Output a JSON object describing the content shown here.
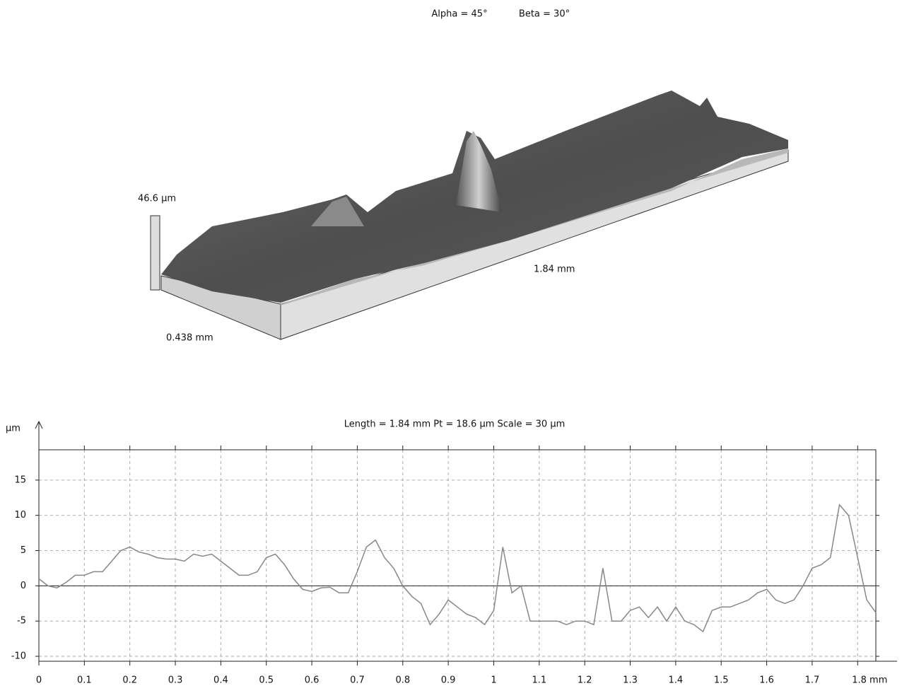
{
  "chart_data": [
    {
      "type": "surface",
      "alpha_label": "Alpha = 45°",
      "beta_label": "Beta = 30°",
      "z_label": "46.6 µm",
      "x_label": "1.84 mm",
      "y_label": "0.438 mm"
    },
    {
      "type": "line",
      "title": "Length = 1.84 mm  Pt = 18.6 µm  Scale = 30 µm",
      "y_label": "µm",
      "color": "#888888",
      "xlim": [
        0,
        1.84
      ],
      "ylim": [
        -10.7,
        19.3
      ],
      "xticks": [
        0,
        0.1,
        0.2,
        0.3,
        0.4,
        0.5,
        0.6,
        0.7,
        0.8,
        0.9,
        1,
        1.1,
        1.2,
        1.3,
        1.4,
        1.5,
        1.6,
        1.7,
        {
          "value": 1.8,
          "label": "1.8 mm"
        }
      ],
      "yticks": [
        -10,
        -5,
        0,
        5,
        10,
        15
      ],
      "grid": true,
      "x": [
        0,
        0.02,
        0.04,
        0.06,
        0.08,
        0.1,
        0.12,
        0.14,
        0.16,
        0.18,
        0.2,
        0.22,
        0.24,
        0.26,
        0.28,
        0.3,
        0.32,
        0.34,
        0.36,
        0.38,
        0.4,
        0.42,
        0.44,
        0.46,
        0.48,
        0.5,
        0.52,
        0.54,
        0.56,
        0.58,
        0.6,
        0.62,
        0.64,
        0.66,
        0.68,
        0.7,
        0.72,
        0.74,
        0.76,
        0.78,
        0.8,
        0.82,
        0.84,
        0.86,
        0.88,
        0.9,
        0.92,
        0.94,
        0.96,
        0.98,
        1,
        1.02,
        1.04,
        1.06,
        1.08,
        1.1,
        1.12,
        1.14,
        1.16,
        1.18,
        1.2,
        1.22,
        1.24,
        1.26,
        1.28,
        1.3,
        1.32,
        1.34,
        1.36,
        1.38,
        1.4,
        1.42,
        1.44,
        1.46,
        1.48,
        1.5,
        1.52,
        1.54,
        1.56,
        1.58,
        1.6,
        1.62,
        1.64,
        1.66,
        1.68,
        1.7,
        1.72,
        1.74,
        1.76,
        1.78,
        1.8,
        1.82,
        1.84
      ],
      "values": [
        1,
        0,
        -0.3,
        0.5,
        1.5,
        1.5,
        2,
        2,
        3.5,
        5,
        5.5,
        4.8,
        4.5,
        4,
        3.8,
        3.8,
        3.5,
        4.5,
        4.2,
        4.5,
        3.5,
        2.5,
        1.5,
        1.5,
        2,
        4,
        4.5,
        3,
        1,
        -0.5,
        -0.8,
        -0.3,
        -0.2,
        -1,
        -1,
        2,
        5.5,
        6.5,
        4,
        2.5,
        0,
        -1.5,
        -2.5,
        -5.5,
        -4,
        -2,
        -3,
        -4,
        -4.5,
        -5.5,
        -3.5,
        5.5,
        -1,
        0,
        -5,
        -5,
        -5,
        -5,
        -5.5,
        -5,
        -5,
        -5.5,
        2.5,
        -5,
        -5,
        -3.5,
        -3,
        -4.5,
        -3,
        -5,
        -3,
        -5,
        -5.5,
        -6.5,
        -3.5,
        -3,
        -3,
        -2.5,
        -2,
        -1,
        -0.5,
        -2,
        -2.5,
        -2,
        0,
        2.5,
        3,
        4,
        11.5,
        10,
        4,
        -2,
        -3.8
      ]
    }
  ]
}
